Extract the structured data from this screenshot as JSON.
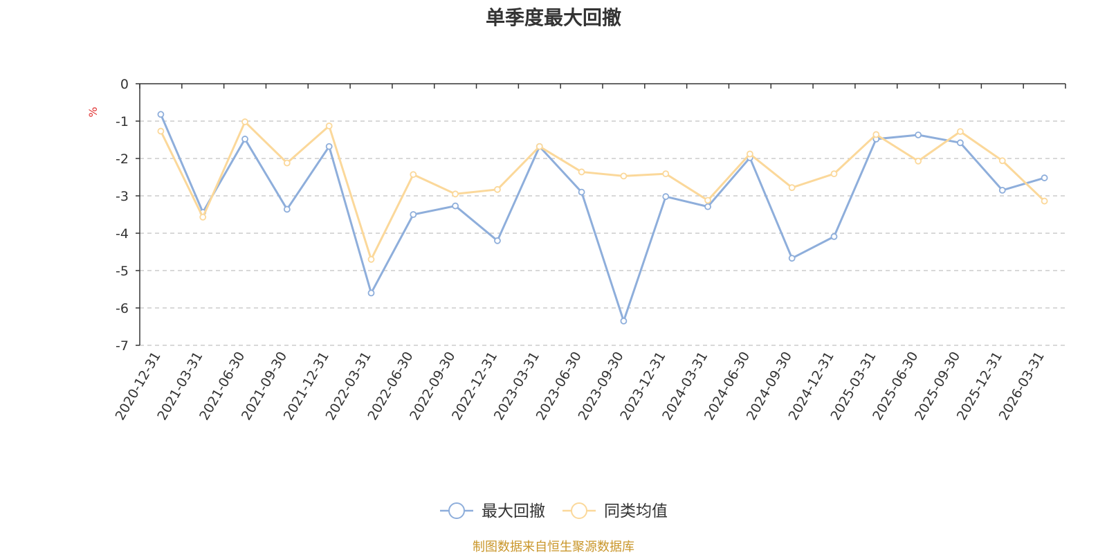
{
  "chart_data": {
    "type": "line",
    "title": "单季度最大回撤",
    "ylabel": "%",
    "xlabel": "",
    "ylim": [
      -7,
      0
    ],
    "yticks": [
      0,
      -1,
      -2,
      -3,
      -4,
      -5,
      -6,
      -7
    ],
    "grid": true,
    "legend_position": "bottom",
    "categories": [
      "2020-12-31",
      "2021-03-31",
      "2021-06-30",
      "2021-09-30",
      "2021-12-31",
      "2022-03-31",
      "2022-06-30",
      "2022-09-30",
      "2022-12-31",
      "2023-03-31",
      "2023-06-30",
      "2023-09-30",
      "2023-12-31",
      "2024-03-31",
      "2024-06-30",
      "2024-09-30",
      "2024-12-31",
      "2025-03-31",
      "2025-06-30",
      "2025-09-30",
      "2025-12-31",
      "2026-03-31"
    ],
    "series": [
      {
        "name": "最大回撤",
        "color": "#8eaedb",
        "values": [
          -0.82,
          -3.44,
          -1.48,
          -3.36,
          -1.68,
          -5.6,
          -3.5,
          -3.27,
          -4.2,
          -1.68,
          -2.9,
          -6.35,
          -3.02,
          -3.29,
          -1.98,
          -4.67,
          -4.09,
          -1.48,
          -1.37,
          -1.58,
          -2.85,
          -2.52
        ]
      },
      {
        "name": "同类均值",
        "color": "#fbd89a",
        "values": [
          -1.27,
          -3.57,
          -1.02,
          -2.12,
          -1.13,
          -4.7,
          -2.43,
          -2.95,
          -2.83,
          -1.68,
          -2.36,
          -2.47,
          -2.41,
          -3.12,
          -1.88,
          -2.78,
          -2.41,
          -1.36,
          -2.07,
          -1.28,
          -2.06,
          -3.14
        ]
      }
    ]
  },
  "source_note": "制图数据来自恒生聚源数据库"
}
